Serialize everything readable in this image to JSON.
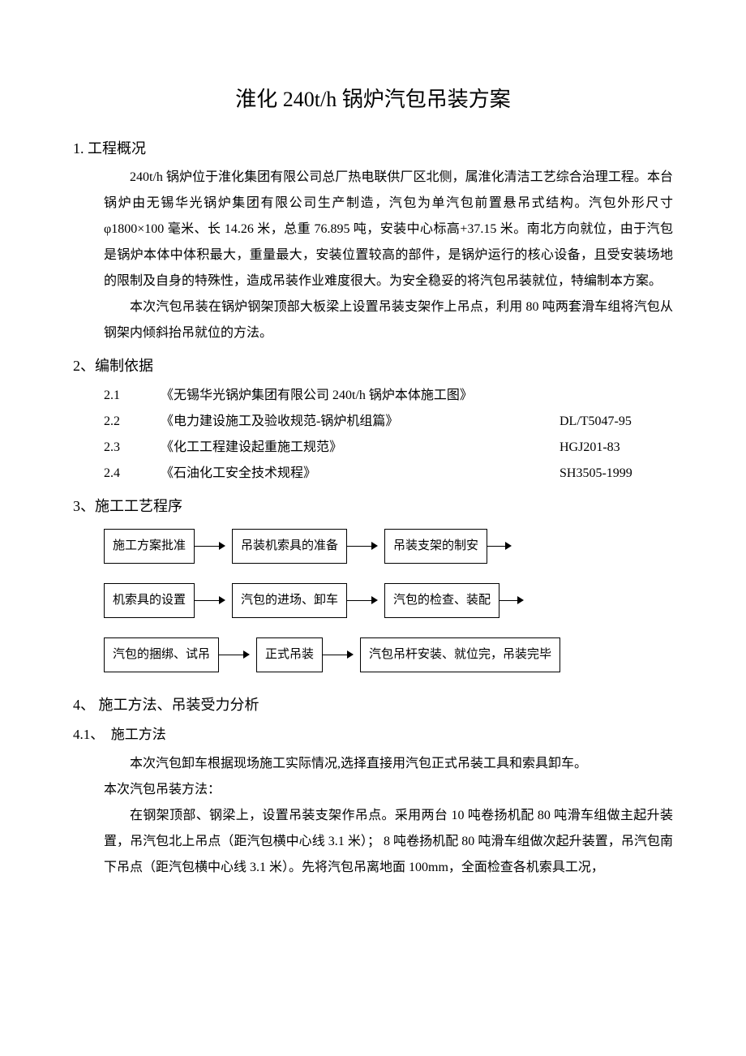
{
  "title": "淮化 240t/h 锅炉汽包吊装方案",
  "sections": {
    "s1": {
      "heading": "1. 工程概况",
      "p1": "240t/h 锅炉位于淮化集团有限公司总厂热电联供厂区北侧，属淮化清洁工艺综合治理工程。本台锅炉由无锡华光锅炉集团有限公司生产制造，汽包为单汽包前置悬吊式结构。汽包外形尺寸φ1800×100 毫米、长 14.26 米，总重 76.895 吨，安装中心标高+37.15 米。南北方向就位，由于汽包是锅炉本体中体积最大，重量最大，安装位置较高的部件，是锅炉运行的核心设备，且受安装场地的限制及自身的特殊性，造成吊装作业难度很大。为安全稳妥的将汽包吊装就位，特编制本方案。",
      "p2": "本次汽包吊装在锅炉钢架顶部大板梁上设置吊装支架作上吊点，利用 80 吨两套滑车组将汽包从钢架内倾斜抬吊就位的方法。"
    },
    "s2": {
      "heading": "2、编制依据",
      "refs": [
        {
          "num": "2.1",
          "title": "《无锡华光锅炉集团有限公司 240t/h 锅炉本体施工图》",
          "code": ""
        },
        {
          "num": "2.2",
          "title": "《电力建设施工及验收规范-锅炉机组篇》",
          "code": "DL/T5047-95"
        },
        {
          "num": "2.3",
          "title": "《化工工程建设起重施工规范》",
          "code": "HGJ201-83"
        },
        {
          "num": "2.4",
          "title": "《石油化工安全技术规程》",
          "code": "SH3505-1999"
        }
      ]
    },
    "s3": {
      "heading": "3、施工工艺程序",
      "flow": {
        "row1": [
          "施工方案批准",
          "吊装机索具的准备",
          "吊装支架的制安"
        ],
        "row2": [
          "机索具的设置",
          "汽包的进场、卸车",
          "汽包的检查、装配"
        ],
        "row3": [
          "汽包的捆绑、试吊",
          "正式吊装",
          "汽包吊杆安装、就位完，吊装完毕"
        ]
      }
    },
    "s4": {
      "heading": "4、 施工方法、吊装受力分析",
      "sub1": {
        "heading": "4.1、　施工方法",
        "p1": "本次汽包卸车根据现场施工实际情况,选择直接用汽包正式吊装工具和索具卸车。",
        "p2": "本次汽包吊装方法：",
        "p3": "在钢架顶部、钢梁上，设置吊装支架作吊点。采用两台 10 吨卷扬机配 80 吨滑车组做主起升装置，吊汽包北上吊点（距汽包横中心线 3.1 米）； 8 吨卷扬机配 80 吨滑车组做次起升装置，吊汽包南下吊点（距汽包横中心线 3.1 米）。先将汽包吊离地面 100mm，全面检查各机索具工况，"
      }
    }
  }
}
